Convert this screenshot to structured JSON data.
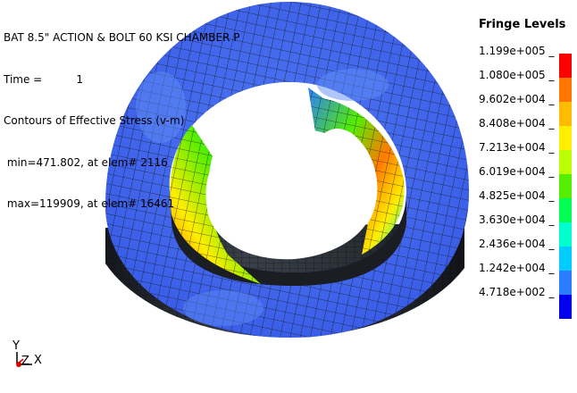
{
  "header": {
    "title": "BAT 8.5\" ACTION & BOLT 60 KSI CHAMBER P",
    "time_line": "Time =          1",
    "contour_label": "Contours of Effective Stress (v-m)",
    "min_line": " min=471.802, at elem# 2116",
    "max_line": " max=119909, at elem# 16461"
  },
  "legend": {
    "title": "Fringe Levels",
    "levels": [
      {
        "label": "1.199e+005 _",
        "color": "#ff0000"
      },
      {
        "label": "1.080e+005 _",
        "color": "#ff7700"
      },
      {
        "label": "9.602e+004 _",
        "color": "#ffbb00"
      },
      {
        "label": "8.408e+004 _",
        "color": "#ffee00"
      },
      {
        "label": "7.213e+004 _",
        "color": "#bbff00"
      },
      {
        "label": "6.019e+004 _",
        "color": "#55ee00"
      },
      {
        "label": "4.825e+004 _",
        "color": "#00ff55"
      },
      {
        "label": "3.630e+004 _",
        "color": "#00ffcc"
      },
      {
        "label": "2.436e+004 _",
        "color": "#00ccff"
      },
      {
        "label": "1.242e+004 _",
        "color": "#2b7dff"
      },
      {
        "label": "4.718e+002 _",
        "color": "#0000ee"
      }
    ]
  },
  "triad": {
    "y_label": "Y",
    "z_label": "Z",
    "x_label": "X"
  },
  "colors": {
    "outer_face": "#4a6ff0",
    "side_dark": "#22262e",
    "mesh": "#1a1a1a"
  }
}
